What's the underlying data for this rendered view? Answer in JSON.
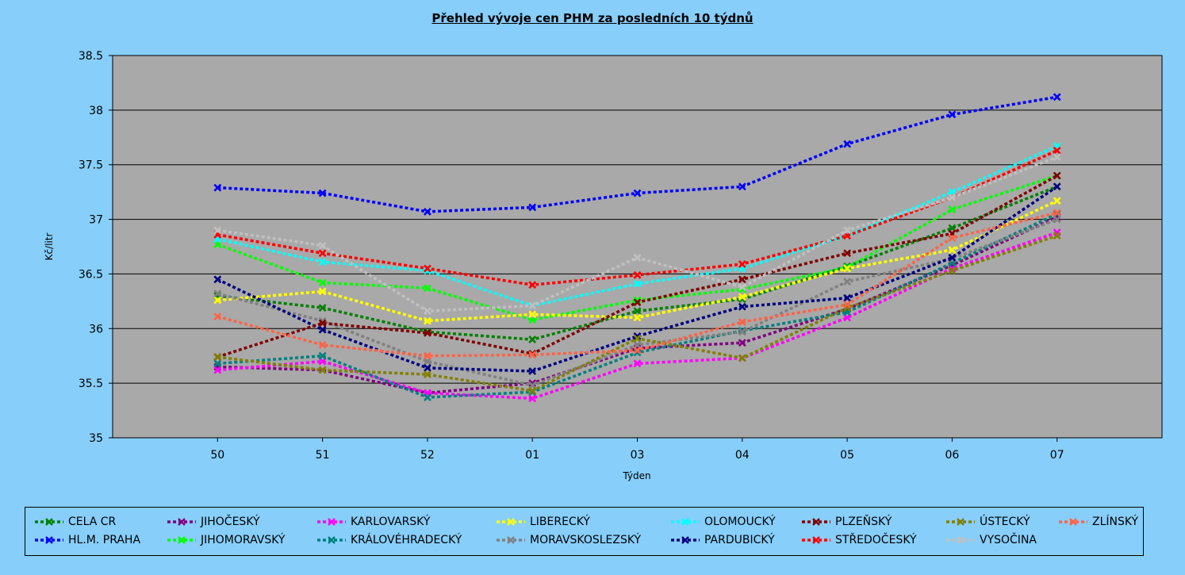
{
  "chart_data": {
    "type": "line",
    "title": "Přehled vývoje cen PHM za posledních 10 týdnů",
    "xlabel": "Týden",
    "ylabel": "Kč/litr",
    "ylim": [
      35,
      38.5
    ],
    "yticks": [
      "35",
      "35.5",
      "36",
      "36.5",
      "37",
      "37.5",
      "38",
      "38.5"
    ],
    "ytick_values": [
      35,
      35.5,
      36,
      36.5,
      37,
      37.5,
      38,
      38.5
    ],
    "categories": [
      "50",
      "51",
      "52",
      "01",
      "03",
      "04",
      "05",
      "06",
      "07"
    ],
    "grid": true,
    "legend_position": "bottom",
    "series": [
      {
        "name": "CELA CR",
        "color": "#008000",
        "values": [
          36.3,
          36.19,
          35.97,
          35.9,
          36.16,
          36.27,
          36.57,
          36.92,
          37.3
        ]
      },
      {
        "name": "HL.M. PRAHA",
        "color": "#0000ff",
        "values": [
          37.29,
          37.24,
          37.07,
          37.11,
          37.24,
          37.3,
          37.69,
          37.96,
          38.12
        ]
      },
      {
        "name": "JIHOČESKÝ",
        "color": "#800080",
        "values": [
          35.65,
          35.62,
          35.41,
          35.5,
          35.82,
          35.87,
          36.18,
          36.58,
          37.02
        ]
      },
      {
        "name": "JIHOMORAVSKÝ",
        "color": "#00ff00",
        "values": [
          36.77,
          36.42,
          36.37,
          36.08,
          36.26,
          36.36,
          36.56,
          37.09,
          37.4
        ]
      },
      {
        "name": "KARLOVARSKÝ",
        "color": "#ff00ff",
        "values": [
          35.62,
          35.7,
          35.41,
          35.36,
          35.68,
          35.73,
          36.1,
          36.55,
          36.88
        ]
      },
      {
        "name": "KRÁLOVÉHRADECKÝ",
        "color": "#008080",
        "values": [
          35.68,
          35.75,
          35.37,
          35.42,
          35.78,
          35.98,
          36.15,
          36.6,
          37.05
        ]
      },
      {
        "name": "LIBERECKÝ",
        "color": "#ffff00",
        "values": [
          36.26,
          36.34,
          36.07,
          36.13,
          36.1,
          36.29,
          36.55,
          36.72,
          37.17
        ]
      },
      {
        "name": "MORAVSKOSLEZSKÝ",
        "color": "#808080",
        "values": [
          36.32,
          36.07,
          35.7,
          35.48,
          35.85,
          35.97,
          36.43,
          36.64,
          37.0
        ]
      },
      {
        "name": "OLOMOUCKÝ",
        "color": "#00ffff",
        "values": [
          36.82,
          36.61,
          36.53,
          36.21,
          36.41,
          36.55,
          36.85,
          37.25,
          37.67
        ]
      },
      {
        "name": "PARDUBICKÝ",
        "color": "#000080",
        "values": [
          36.45,
          35.99,
          35.64,
          35.61,
          35.93,
          36.2,
          36.28,
          36.65,
          37.3
        ]
      },
      {
        "name": "PLZEŇSKÝ",
        "color": "#800000",
        "values": [
          35.74,
          36.05,
          35.96,
          35.77,
          36.24,
          36.45,
          36.69,
          36.87,
          37.4
        ]
      },
      {
        "name": "STŘEDOČESKÝ",
        "color": "#ff0000",
        "values": [
          36.86,
          36.69,
          36.55,
          36.4,
          36.49,
          36.59,
          36.85,
          37.2,
          37.63
        ]
      },
      {
        "name": "ÚSTECKÝ",
        "color": "#808000",
        "values": [
          35.74,
          35.62,
          35.58,
          35.43,
          35.91,
          35.73,
          36.19,
          36.53,
          36.85
        ]
      },
      {
        "name": "VYSOČINA",
        "color": "#c0c0c0",
        "values": [
          36.9,
          36.76,
          36.16,
          36.21,
          36.65,
          36.38,
          36.9,
          37.2,
          37.57
        ]
      },
      {
        "name": "ZLÍNSKÝ",
        "color": "#ff6347",
        "values": [
          36.11,
          35.85,
          35.75,
          35.76,
          35.8,
          36.06,
          36.22,
          36.83,
          37.06
        ]
      }
    ]
  }
}
